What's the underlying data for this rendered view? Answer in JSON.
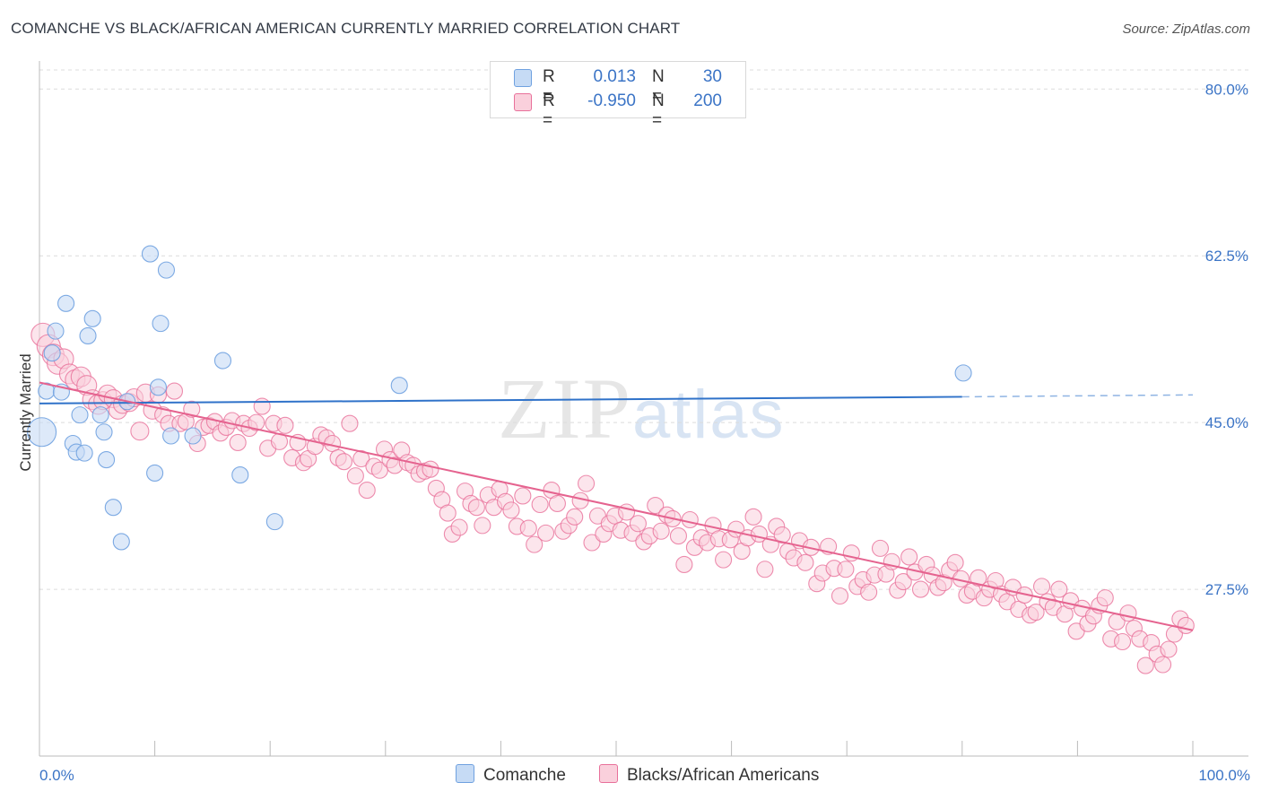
{
  "title": "COMANCHE VS BLACK/AFRICAN AMERICAN CURRENTLY MARRIED CORRELATION CHART",
  "source": "Source: ZipAtlas.com",
  "watermark": {
    "zip": "ZIP",
    "atlas": "atlas"
  },
  "legend": {
    "rows": [
      {
        "r_label": "R =",
        "r_value": "0.013",
        "n_label": "N =",
        "n_value": "30",
        "color": "#a9c8f0"
      },
      {
        "r_label": "R =",
        "r_value": "-0.950",
        "n_label": "N =",
        "n_value": "200",
        "color": "#f7b6c9"
      }
    ]
  },
  "bottom_legend": {
    "series1": "Comanche",
    "series2": "Blacks/African Americans"
  },
  "chart_data": {
    "type": "scatter",
    "title": "COMANCHE VS BLACK/AFRICAN AMERICAN CURRENTLY MARRIED CORRELATION CHART",
    "xlabel": "",
    "ylabel": "Currently Married",
    "xlim": [
      0,
      100
    ],
    "ylim": [
      10,
      82
    ],
    "x_tick_labels": [
      "0.0%",
      "100.0%"
    ],
    "y_ticks": [
      27.5,
      45.0,
      62.5,
      80.0
    ],
    "y_tick_labels": [
      "27.5%",
      "45.0%",
      "62.5%",
      "80.0%"
    ],
    "colors": {
      "comanche": "#6fa1e0",
      "comanche_fill": "#c6dbf5",
      "black": "#e8709a",
      "black_fill": "#fad0dc",
      "axis_text": "#3b74c6"
    },
    "series": [
      {
        "name": "Comanche",
        "r": 0.013,
        "n": 30,
        "trend": {
          "x0": 0,
          "y0": 47.0,
          "x1": 80,
          "y1": 47.7,
          "dash_to": 100,
          "dash_y": 47.9
        },
        "points": [
          [
            0.6,
            48.3
          ],
          [
            1.1,
            52.3
          ],
          [
            1.4,
            54.6
          ],
          [
            1.9,
            48.2
          ],
          [
            2.3,
            57.5
          ],
          [
            2.9,
            42.8
          ],
          [
            3.2,
            41.9
          ],
          [
            3.5,
            45.8
          ],
          [
            3.9,
            41.8
          ],
          [
            4.2,
            54.1
          ],
          [
            4.6,
            55.9
          ],
          [
            5.3,
            45.8
          ],
          [
            5.6,
            44.0
          ],
          [
            5.8,
            41.1
          ],
          [
            6.4,
            36.1
          ],
          [
            7.1,
            32.5
          ],
          [
            7.6,
            47.2
          ],
          [
            9.6,
            62.7
          ],
          [
            10.0,
            39.7
          ],
          [
            10.3,
            48.7
          ],
          [
            10.5,
            55.4
          ],
          [
            11.0,
            61.0
          ],
          [
            11.4,
            43.6
          ],
          [
            13.3,
            43.6
          ],
          [
            15.9,
            51.5
          ],
          [
            17.4,
            39.5
          ],
          [
            20.4,
            34.6
          ],
          [
            31.2,
            48.9
          ],
          [
            80.1,
            50.2
          ],
          [
            0.2,
            44.0
          ]
        ],
        "sizes": [
          9,
          9,
          9,
          9,
          9,
          9,
          9,
          9,
          9,
          9,
          9,
          9,
          9,
          9,
          9,
          9,
          9,
          9,
          9,
          9,
          9,
          9,
          9,
          9,
          9,
          9,
          9,
          9,
          9,
          16
        ]
      },
      {
        "name": "Blacks/African Americans",
        "r": -0.95,
        "n": 200,
        "trend": {
          "x0": 0,
          "y0": 49.2,
          "x1": 100,
          "y1": 23.2
        },
        "points": [
          [
            0.3,
            54.2
          ],
          [
            0.8,
            53.0
          ],
          [
            1.2,
            52.1
          ],
          [
            1.6,
            51.2
          ],
          [
            2.1,
            51.7
          ],
          [
            2.6,
            50.1
          ],
          [
            3.1,
            49.5
          ],
          [
            3.6,
            49.8
          ],
          [
            4.1,
            48.9
          ],
          [
            4.6,
            47.4
          ],
          [
            5.1,
            46.9
          ],
          [
            5.5,
            47.3
          ],
          [
            5.9,
            48.0
          ],
          [
            6.4,
            47.5
          ],
          [
            6.8,
            46.3
          ],
          [
            7.2,
            46.9
          ],
          [
            7.8,
            47.1
          ],
          [
            8.2,
            47.6
          ],
          [
            8.7,
            44.1
          ],
          [
            9.2,
            48.1
          ],
          [
            9.8,
            46.3
          ],
          [
            10.3,
            47.9
          ],
          [
            10.7,
            45.8
          ],
          [
            11.2,
            44.9
          ],
          [
            11.7,
            48.3
          ],
          [
            12.2,
            44.9
          ],
          [
            12.7,
            45.1
          ],
          [
            13.2,
            46.4
          ],
          [
            13.7,
            42.8
          ],
          [
            14.2,
            44.5
          ],
          [
            14.7,
            44.7
          ],
          [
            15.2,
            45.1
          ],
          [
            15.7,
            43.9
          ],
          [
            16.2,
            44.5
          ],
          [
            16.7,
            45.2
          ],
          [
            17.2,
            42.9
          ],
          [
            17.7,
            44.9
          ],
          [
            18.2,
            44.4
          ],
          [
            18.8,
            45.0
          ],
          [
            19.3,
            46.7
          ],
          [
            19.8,
            42.3
          ],
          [
            20.3,
            44.9
          ],
          [
            20.8,
            43.0
          ],
          [
            21.3,
            44.7
          ],
          [
            21.9,
            41.3
          ],
          [
            22.4,
            42.9
          ],
          [
            22.9,
            40.8
          ],
          [
            23.3,
            41.2
          ],
          [
            23.9,
            42.5
          ],
          [
            24.4,
            43.7
          ],
          [
            24.9,
            43.4
          ],
          [
            25.4,
            42.8
          ],
          [
            25.9,
            41.3
          ],
          [
            26.4,
            40.9
          ],
          [
            26.9,
            44.9
          ],
          [
            27.4,
            39.4
          ],
          [
            27.9,
            41.2
          ],
          [
            28.4,
            37.9
          ],
          [
            29.0,
            40.4
          ],
          [
            29.5,
            40.0
          ],
          [
            29.9,
            42.2
          ],
          [
            30.4,
            41.1
          ],
          [
            30.8,
            40.5
          ],
          [
            31.4,
            42.1
          ],
          [
            31.9,
            40.8
          ],
          [
            32.4,
            40.5
          ],
          [
            32.9,
            39.6
          ],
          [
            33.4,
            39.9
          ],
          [
            33.9,
            40.1
          ],
          [
            34.4,
            38.1
          ],
          [
            34.9,
            36.9
          ],
          [
            35.4,
            35.5
          ],
          [
            35.8,
            33.3
          ],
          [
            36.4,
            34.0
          ],
          [
            36.9,
            37.8
          ],
          [
            37.4,
            36.5
          ],
          [
            37.9,
            36.1
          ],
          [
            38.4,
            34.2
          ],
          [
            38.9,
            37.4
          ],
          [
            39.4,
            36.1
          ],
          [
            39.9,
            38.0
          ],
          [
            40.4,
            36.7
          ],
          [
            40.9,
            35.8
          ],
          [
            41.4,
            34.1
          ],
          [
            41.9,
            37.3
          ],
          [
            42.4,
            33.9
          ],
          [
            42.9,
            32.2
          ],
          [
            43.4,
            36.4
          ],
          [
            43.9,
            33.4
          ],
          [
            44.4,
            37.9
          ],
          [
            44.9,
            36.5
          ],
          [
            45.4,
            33.6
          ],
          [
            45.9,
            34.2
          ],
          [
            46.4,
            35.1
          ],
          [
            46.9,
            36.8
          ],
          [
            47.4,
            38.6
          ],
          [
            47.9,
            32.4
          ],
          [
            48.4,
            35.2
          ],
          [
            48.9,
            33.3
          ],
          [
            49.4,
            34.4
          ],
          [
            49.9,
            35.2
          ],
          [
            50.4,
            33.7
          ],
          [
            50.9,
            35.6
          ],
          [
            51.4,
            33.4
          ],
          [
            51.9,
            34.4
          ],
          [
            52.4,
            32.5
          ],
          [
            52.9,
            33.1
          ],
          [
            53.4,
            36.3
          ],
          [
            53.9,
            33.6
          ],
          [
            54.4,
            35.3
          ],
          [
            54.9,
            34.9
          ],
          [
            55.4,
            33.1
          ],
          [
            55.9,
            30.1
          ],
          [
            56.4,
            34.8
          ],
          [
            56.8,
            31.9
          ],
          [
            57.4,
            32.9
          ],
          [
            57.9,
            32.4
          ],
          [
            58.4,
            34.2
          ],
          [
            58.9,
            32.8
          ],
          [
            59.3,
            30.6
          ],
          [
            59.9,
            32.7
          ],
          [
            60.4,
            33.8
          ],
          [
            60.9,
            31.5
          ],
          [
            61.4,
            32.9
          ],
          [
            61.9,
            35.1
          ],
          [
            62.4,
            33.3
          ],
          [
            62.9,
            29.6
          ],
          [
            63.4,
            32.2
          ],
          [
            63.9,
            34.1
          ],
          [
            64.4,
            33.2
          ],
          [
            64.9,
            31.5
          ],
          [
            65.4,
            30.8
          ],
          [
            65.9,
            32.6
          ],
          [
            66.4,
            30.3
          ],
          [
            66.9,
            31.9
          ],
          [
            67.4,
            28.1
          ],
          [
            67.9,
            29.2
          ],
          [
            68.4,
            32.0
          ],
          [
            68.9,
            29.7
          ],
          [
            69.4,
            26.8
          ],
          [
            69.9,
            29.6
          ],
          [
            70.4,
            31.3
          ],
          [
            70.9,
            27.8
          ],
          [
            71.4,
            28.5
          ],
          [
            71.9,
            27.2
          ],
          [
            72.4,
            29.0
          ],
          [
            72.9,
            31.8
          ],
          [
            73.4,
            29.1
          ],
          [
            73.9,
            30.4
          ],
          [
            74.4,
            27.4
          ],
          [
            74.9,
            28.3
          ],
          [
            75.4,
            30.9
          ],
          [
            75.9,
            29.3
          ],
          [
            76.4,
            27.5
          ],
          [
            76.9,
            30.1
          ],
          [
            77.4,
            29.0
          ],
          [
            77.9,
            27.7
          ],
          [
            78.4,
            28.2
          ],
          [
            78.9,
            29.5
          ],
          [
            79.4,
            30.3
          ],
          [
            79.9,
            28.6
          ],
          [
            80.4,
            26.9
          ],
          [
            80.9,
            27.3
          ],
          [
            81.4,
            28.7
          ],
          [
            81.9,
            26.6
          ],
          [
            82.4,
            27.5
          ],
          [
            82.9,
            28.4
          ],
          [
            83.4,
            27.0
          ],
          [
            83.9,
            26.2
          ],
          [
            84.4,
            27.7
          ],
          [
            84.9,
            25.4
          ],
          [
            85.4,
            26.9
          ],
          [
            85.9,
            24.8
          ],
          [
            86.4,
            25.1
          ],
          [
            86.9,
            27.8
          ],
          [
            87.4,
            26.2
          ],
          [
            87.9,
            25.6
          ],
          [
            88.4,
            27.5
          ],
          [
            88.9,
            24.9
          ],
          [
            89.4,
            26.3
          ],
          [
            89.9,
            23.1
          ],
          [
            90.4,
            25.5
          ],
          [
            90.9,
            23.9
          ],
          [
            91.4,
            24.7
          ],
          [
            91.9,
            25.8
          ],
          [
            92.4,
            26.6
          ],
          [
            92.9,
            22.3
          ],
          [
            93.4,
            24.1
          ],
          [
            93.9,
            22.0
          ],
          [
            94.4,
            25.0
          ],
          [
            94.9,
            23.4
          ],
          [
            95.4,
            22.3
          ],
          [
            95.9,
            19.5
          ],
          [
            96.4,
            21.9
          ],
          [
            96.9,
            20.7
          ],
          [
            97.4,
            19.6
          ],
          [
            97.9,
            21.2
          ],
          [
            98.4,
            22.8
          ],
          [
            98.9,
            24.4
          ],
          [
            99.4,
            23.7
          ]
        ],
        "sizes": [
          13,
          13,
          12,
          12,
          11,
          11,
          11,
          11,
          11,
          11,
          11,
          10,
          10,
          10,
          10,
          10,
          10,
          10,
          10,
          10,
          10,
          9,
          9,
          9,
          9,
          9,
          9,
          9,
          9,
          9,
          9,
          9,
          9,
          9,
          9,
          9,
          9,
          9,
          9,
          9,
          9,
          9,
          9,
          9,
          9,
          9,
          9,
          9,
          9,
          9,
          9,
          9,
          9,
          9,
          9,
          9,
          9,
          9,
          9,
          9,
          9,
          9,
          9,
          9,
          9,
          9,
          9,
          9,
          9,
          9,
          9,
          9,
          9,
          9,
          9,
          9,
          9,
          9,
          9,
          9,
          9,
          9,
          9,
          9,
          9,
          9,
          9,
          9,
          9,
          9,
          9,
          9,
          9,
          9,
          9,
          9,
          9,
          9,
          9,
          9,
          9,
          9,
          9,
          9,
          9,
          9,
          9,
          9,
          9,
          9,
          9,
          9,
          9,
          9,
          9,
          9,
          9,
          9,
          9,
          9,
          9,
          9,
          9,
          9,
          9,
          9,
          9,
          9,
          9,
          9,
          9,
          9,
          9,
          9,
          9,
          9,
          9,
          9,
          9,
          9,
          9,
          9,
          9,
          9,
          9,
          9,
          9,
          9,
          9,
          9,
          9,
          9,
          9,
          9,
          9,
          9,
          9,
          9,
          9,
          9,
          9,
          9,
          9,
          9,
          9,
          9,
          9,
          9,
          9,
          9,
          9,
          9,
          9,
          9,
          9,
          9,
          9,
          9,
          9,
          9,
          9,
          9,
          9,
          9,
          9,
          9,
          9,
          9,
          9,
          9,
          9,
          9,
          9,
          9,
          9,
          9,
          9,
          9,
          9,
          9
        ]
      }
    ]
  }
}
